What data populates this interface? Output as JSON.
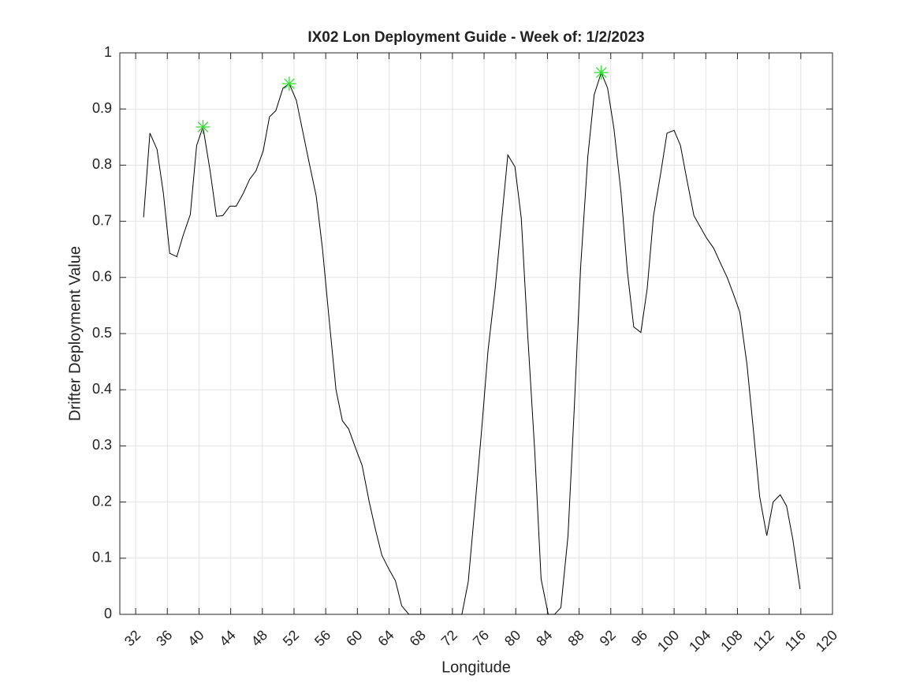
{
  "chart_data": {
    "type": "line",
    "title": "IX02 Lon Deployment Guide - Week of: 1/2/2023",
    "xlabel": "Longitude",
    "ylabel": "Drifter Deployment Value",
    "xlim": [
      30,
      120
    ],
    "ylim": [
      0,
      1
    ],
    "xticks": [
      32,
      36,
      40,
      44,
      48,
      52,
      56,
      60,
      64,
      68,
      72,
      76,
      80,
      84,
      88,
      92,
      96,
      100,
      104,
      108,
      112,
      116,
      120
    ],
    "yticks": [
      0,
      0.1,
      0.2,
      0.3,
      0.4,
      0.5,
      0.6,
      0.7,
      0.8,
      0.9,
      1
    ],
    "grid": true,
    "series": [
      {
        "color": "#000000",
        "marker": "none",
        "x": [
          33.0,
          33.8,
          34.7,
          35.5,
          36.3,
          37.2,
          38.0,
          38.9,
          39.7,
          40.5,
          41.4,
          42.2,
          43.0,
          43.9,
          44.7,
          45.6,
          46.4,
          47.2,
          48.1,
          48.9,
          49.7,
          50.6,
          51.4,
          52.3,
          53.1,
          53.9,
          54.8,
          55.6,
          56.4,
          57.3,
          58.1,
          58.9,
          59.8,
          60.6,
          61.5,
          62.3,
          63.1,
          64.0,
          64.8,
          65.6,
          66.5,
          67.3,
          68.2,
          69.0,
          69.8,
          70.7,
          71.5,
          72.3,
          73.2,
          74.0,
          74.9,
          75.7,
          76.5,
          77.4,
          78.2,
          79.0,
          79.9,
          80.7,
          81.5,
          82.4,
          83.2,
          84.1,
          84.9,
          85.7,
          86.6,
          87.4,
          88.2,
          89.1,
          89.9,
          90.8,
          91.6,
          92.4,
          93.3,
          94.1,
          94.9,
          95.8,
          96.6,
          97.4,
          98.3,
          99.1,
          100.0,
          100.8,
          101.6,
          102.5,
          103.3,
          104.1,
          105.0,
          105.8,
          106.7,
          107.5,
          108.3,
          109.2,
          110.0,
          110.8,
          111.7,
          112.5,
          113.4,
          114.2,
          115.0,
          115.9
        ],
        "values": [
          0.707,
          0.857,
          0.828,
          0.75,
          0.643,
          0.637,
          0.675,
          0.712,
          0.835,
          0.868,
          0.79,
          0.709,
          0.71,
          0.727,
          0.727,
          0.75,
          0.775,
          0.79,
          0.825,
          0.886,
          0.897,
          0.937,
          0.945,
          0.915,
          0.86,
          0.805,
          0.745,
          0.65,
          0.53,
          0.4,
          0.345,
          0.33,
          0.295,
          0.265,
          0.2,
          0.15,
          0.105,
          0.08,
          0.06,
          0.015,
          0,
          0,
          0,
          0,
          0,
          0,
          0,
          0,
          0,
          0.058,
          0.2,
          0.33,
          0.47,
          0.58,
          0.7,
          0.818,
          0.797,
          0.705,
          0.5,
          0.29,
          0.063,
          0,
          0,
          0.012,
          0.14,
          0.37,
          0.62,
          0.815,
          0.925,
          0.965,
          0.937,
          0.865,
          0.75,
          0.61,
          0.512,
          0.502,
          0.58,
          0.71,
          0.785,
          0.857,
          0.862,
          0.835,
          0.775,
          0.71,
          0.69,
          0.67,
          0.652,
          0.627,
          0.6,
          0.57,
          0.538,
          0.445,
          0.33,
          0.21,
          0.14,
          0.2,
          0.213,
          0.193,
          0.133,
          0.045
        ]
      },
      {
        "color": "#33dd33",
        "marker": "star",
        "x": [
          40.5,
          51.4,
          90.8
        ],
        "values": [
          0.868,
          0.945,
          0.965
        ]
      }
    ]
  }
}
